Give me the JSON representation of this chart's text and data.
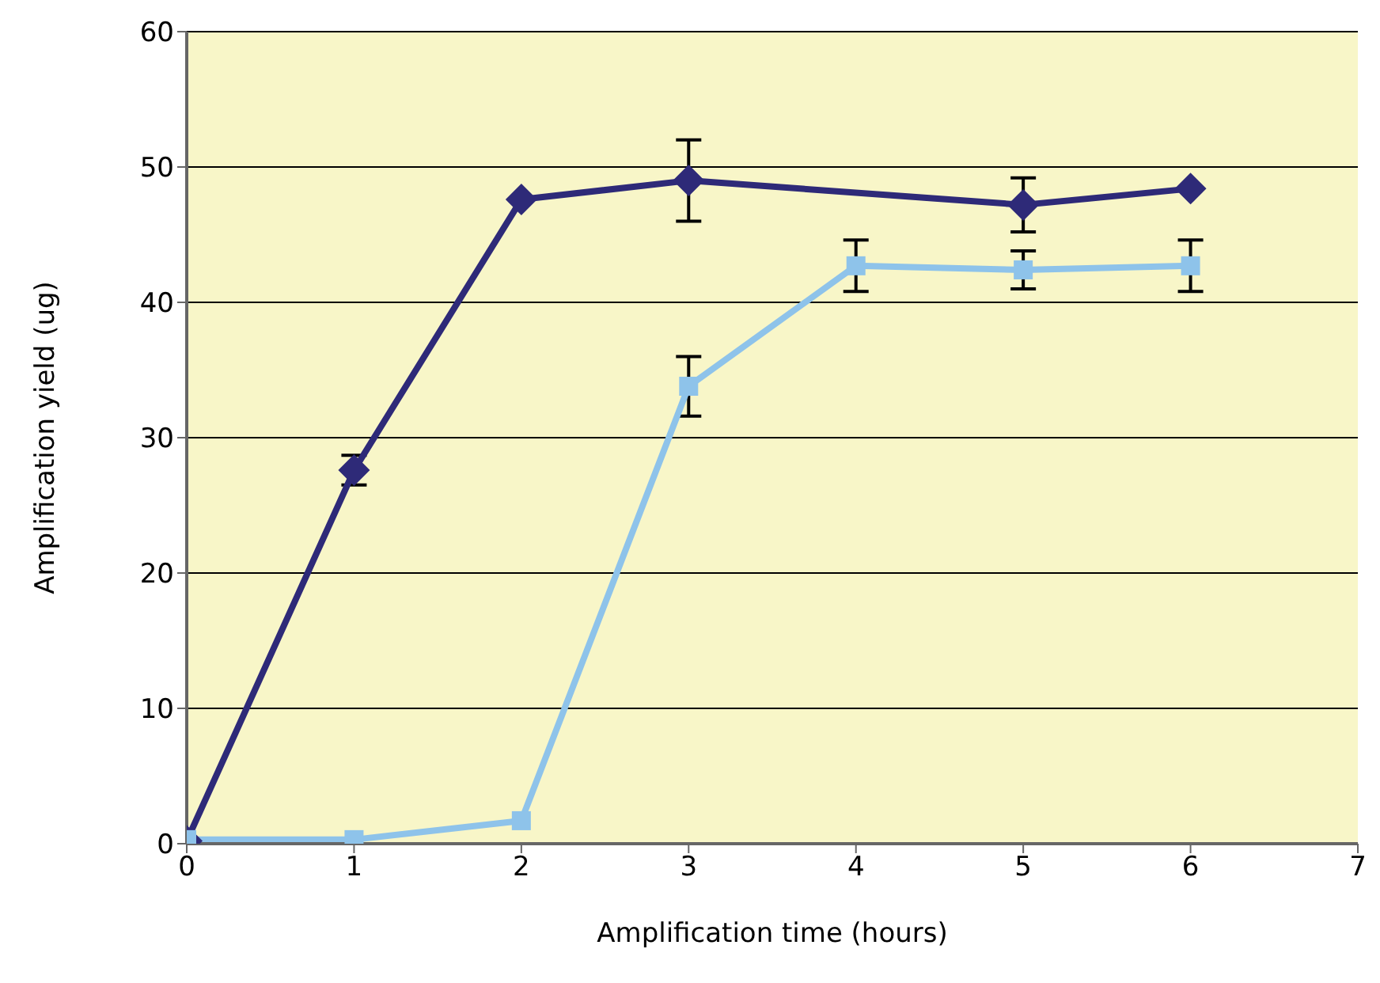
{
  "chart_data": {
    "type": "line",
    "xlabel": "Amplification time (hours)",
    "ylabel": "Amplification yield (ug)",
    "x": [
      0,
      1,
      2,
      3,
      4,
      5,
      6
    ],
    "series": [
      {
        "color": "#2e2a78",
        "marker": "diamond",
        "x": [
          0,
          1,
          2,
          3,
          5,
          6
        ],
        "values": [
          0.2,
          27.6,
          47.6,
          49.0,
          47.2,
          48.4
        ],
        "errors": [
          null,
          1.1,
          null,
          3.0,
          2.0,
          null
        ]
      },
      {
        "color": "#8ec3ea",
        "marker": "square",
        "values": [
          0.3,
          0.3,
          1.7,
          33.8,
          42.7,
          42.4,
          42.7
        ],
        "errors": [
          null,
          null,
          null,
          2.2,
          1.9,
          1.4,
          1.9
        ]
      }
    ],
    "xlim": [
      0,
      7
    ],
    "xticks": [
      0,
      1,
      2,
      3,
      4,
      5,
      6,
      7
    ],
    "ylim": [
      0,
      60
    ],
    "yticks": [
      0,
      10,
      20,
      30,
      40,
      50,
      60
    ],
    "grid": "y",
    "legend": false
  }
}
